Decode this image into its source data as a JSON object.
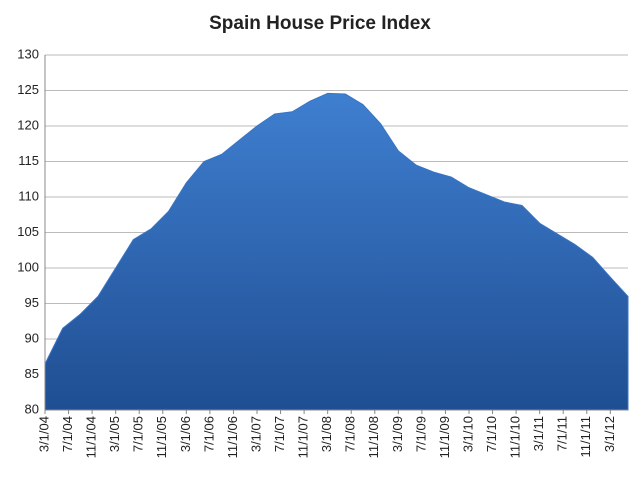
{
  "chart_data": {
    "type": "area",
    "title": "Spain House Price Index",
    "x": [
      "3/1/04",
      "6/1/04",
      "9/1/04",
      "12/1/04",
      "3/1/05",
      "6/1/05",
      "9/1/05",
      "12/1/05",
      "3/1/06",
      "6/1/06",
      "9/1/06",
      "12/1/06",
      "3/1/07",
      "6/1/07",
      "9/1/07",
      "12/1/07",
      "3/1/08",
      "6/1/08",
      "9/1/08",
      "12/1/08",
      "3/1/09",
      "6/1/09",
      "9/1/09",
      "12/1/09",
      "3/1/10",
      "6/1/10",
      "9/1/10",
      "12/1/10",
      "3/1/11",
      "6/1/11",
      "9/1/11",
      "12/1/11",
      "3/1/12",
      "6/1/12"
    ],
    "values": [
      86.5,
      91.5,
      93.5,
      96,
      100,
      104,
      105.5,
      108,
      112,
      115,
      116,
      118,
      120,
      121.7,
      122,
      123.5,
      124.6,
      124.5,
      123,
      120.3,
      116.5,
      114.5,
      113.5,
      112.8,
      111.3,
      110.3,
      109.3,
      108.8,
      106.3,
      104.8,
      103.3,
      101.5,
      98.7,
      96
    ],
    "color": "#3a74c4",
    "xlim": [
      "3/1/04",
      "6/1/12"
    ],
    "xticks": [
      "3/1/04",
      "7/1/04",
      "11/1/04",
      "3/1/05",
      "7/1/05",
      "11/1/05",
      "3/1/06",
      "7/1/06",
      "11/1/06",
      "3/1/07",
      "7/1/07",
      "11/1/07",
      "3/1/08",
      "7/1/08",
      "11/1/08",
      "3/1/09",
      "7/1/09",
      "11/1/09",
      "3/1/10",
      "7/1/10",
      "11/1/10",
      "3/1/11",
      "7/1/11",
      "11/1/11",
      "3/1/12"
    ],
    "ylim": [
      80,
      130
    ],
    "yticks": [
      80,
      85,
      90,
      95,
      100,
      105,
      110,
      115,
      120,
      125,
      130
    ],
    "grid": true
  }
}
